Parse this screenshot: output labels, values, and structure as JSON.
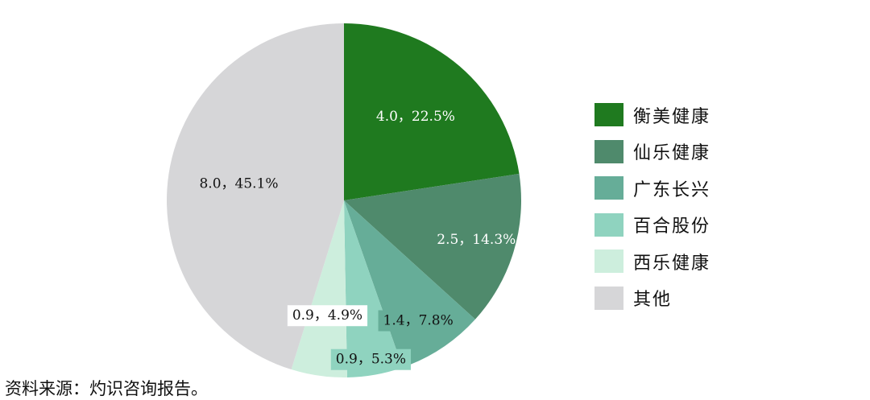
{
  "chart_data": {
    "type": "pie",
    "title": "",
    "start_angle_deg": 0,
    "direction": "clockwise",
    "slices": [
      {
        "name": "衡美健康",
        "value": 4.0,
        "percent": "22.5%",
        "label": "4.0，22.5%",
        "color": "#1f7a1f",
        "label_color": "#ffffff",
        "label_bg": ""
      },
      {
        "name": "仙乐健康",
        "value": 2.5,
        "percent": "14.3%",
        "label": "2.5，14.3%",
        "color": "#4f8a6c",
        "label_color": "#ffffff",
        "label_bg": ""
      },
      {
        "name": "广东长兴",
        "value": 1.4,
        "percent": "7.8%",
        "label": "1.4，7.8%",
        "color": "#66ad98",
        "label_color": "#111111",
        "label_bg": "#66ad98"
      },
      {
        "name": "百合股份",
        "value": 0.9,
        "percent": "5.3%",
        "label": "0.9，5.3%",
        "color": "#8fd3bf",
        "label_color": "#111111",
        "label_bg": "#8fd3bf"
      },
      {
        "name": "西乐健康",
        "value": 0.9,
        "percent": "4.9%",
        "label": "0.9，4.9%",
        "color": "#cdeedd",
        "label_color": "#111111",
        "label_bg": "#ffffff"
      },
      {
        "name": "其他",
        "value": 8.0,
        "percent": "45.1%",
        "label": "8.0，45.1%",
        "color": "#d6d6d8",
        "label_color": "#111111",
        "label_bg": ""
      }
    ],
    "legend_position": "right"
  },
  "source": "资料来源：灼识咨询报告。"
}
